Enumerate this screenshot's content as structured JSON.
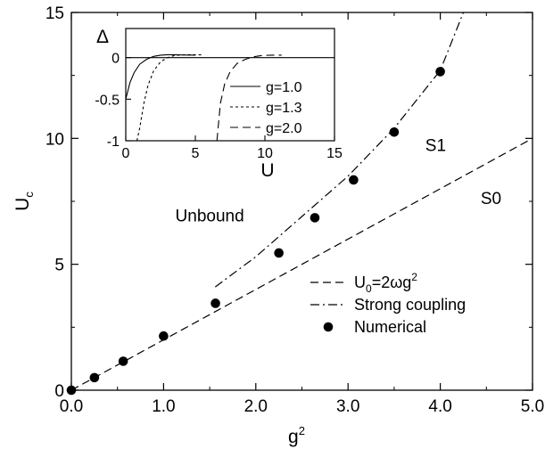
{
  "chart_data": [
    {
      "type": "line",
      "xlabel": "g",
      "xlabel_sup": "2",
      "ylabel": "U",
      "ylabel_sub": "c",
      "xlim": [
        0,
        5
      ],
      "ylim": [
        0,
        15
      ],
      "x_ticks": [
        "0.0",
        "1.0",
        "2.0",
        "3.0",
        "4.0",
        "5.0"
      ],
      "y_ticks": [
        "0",
        "5",
        "10",
        "15"
      ],
      "x_tick_values": [
        0,
        1,
        2,
        3,
        4,
        5
      ],
      "y_tick_values": [
        0,
        5,
        10,
        15
      ],
      "region_labels": [
        {
          "text": "Unbound",
          "x": 1.5,
          "y": 6.7
        },
        {
          "text": "S1",
          "x": 3.95,
          "y": 9.5
        },
        {
          "text": "S0",
          "x": 4.55,
          "y": 7.4
        }
      ],
      "legend": {
        "placement": "lower-right",
        "entries": [
          {
            "label_parts": [
              "U",
              "0",
              "=2ωg",
              "2"
            ],
            "style": "dashed"
          },
          {
            "label": "Strong coupling",
            "style": "dashdot"
          },
          {
            "label": "Numerical",
            "style": "marker"
          }
        ]
      },
      "series": [
        {
          "style": "dashed",
          "x": [
            0,
            5
          ],
          "y": [
            0,
            10
          ]
        },
        {
          "style": "dashdot",
          "x": [
            1.56,
            2.0,
            2.5,
            3.0,
            3.5,
            4.0,
            4.25
          ],
          "y": [
            4.1,
            5.3,
            6.9,
            8.5,
            10.4,
            12.7,
            15.0
          ]
        },
        {
          "style": "marker",
          "x": [
            0.0,
            0.25,
            0.5625,
            1.0,
            1.5625,
            2.25,
            2.64,
            3.06,
            3.5,
            4.0
          ],
          "y": [
            0.0,
            0.5,
            1.15,
            2.15,
            3.45,
            5.45,
            6.85,
            8.35,
            10.25,
            12.65
          ]
        }
      ]
    },
    {
      "type": "line",
      "inset": true,
      "xlabel": "U",
      "ylabel": "Δ",
      "xlim": [
        0,
        15
      ],
      "ylim": [
        -1,
        0.35
      ],
      "x_ticks": [
        "0",
        "5",
        "10",
        "15"
      ],
      "y_ticks": [
        "0",
        "-0.5",
        "-1"
      ],
      "x_tick_values": [
        0,
        5,
        10,
        15
      ],
      "y_tick_values": [
        0,
        -0.5,
        -1
      ],
      "legend": {
        "placement": "lower-right",
        "entries": [
          {
            "label": "g=1.0",
            "style": "solid"
          },
          {
            "label": "g=1.3",
            "style": "dotted"
          },
          {
            "label": "g=2.0",
            "style": "dashed"
          }
        ]
      },
      "series": [
        {
          "style": "baseline",
          "x": [
            0,
            15
          ],
          "y": [
            0,
            0
          ]
        },
        {
          "name": "g=1.0",
          "style": "solid",
          "x": [
            0,
            0.3,
            0.6,
            1.0,
            1.5,
            2.0,
            2.5,
            3.0,
            3.5,
            4.0,
            5.0
          ],
          "y": [
            -0.5,
            -0.3,
            -0.18,
            -0.08,
            -0.02,
            0.015,
            0.03,
            0.035,
            0.035,
            0.032,
            0.03
          ]
        },
        {
          "name": "g=1.3",
          "style": "dotted",
          "x": [
            0.8,
            1.0,
            1.3,
            1.6,
            2.0,
            2.5,
            3.0,
            3.5,
            4.0,
            4.5,
            5.0,
            5.5
          ],
          "y": [
            -1,
            -0.85,
            -0.55,
            -0.33,
            -0.16,
            -0.05,
            0.0,
            0.025,
            0.033,
            0.035,
            0.035,
            0.033
          ]
        },
        {
          "name": "g=2.0",
          "style": "dashed",
          "x": [
            6.55,
            6.8,
            7.1,
            7.5,
            8.0,
            8.6,
            9.2,
            9.8,
            10.5,
            11.2
          ],
          "y": [
            -1,
            -0.55,
            -0.32,
            -0.17,
            -0.07,
            -0.02,
            0.01,
            0.025,
            0.03,
            0.03
          ]
        }
      ]
    }
  ]
}
